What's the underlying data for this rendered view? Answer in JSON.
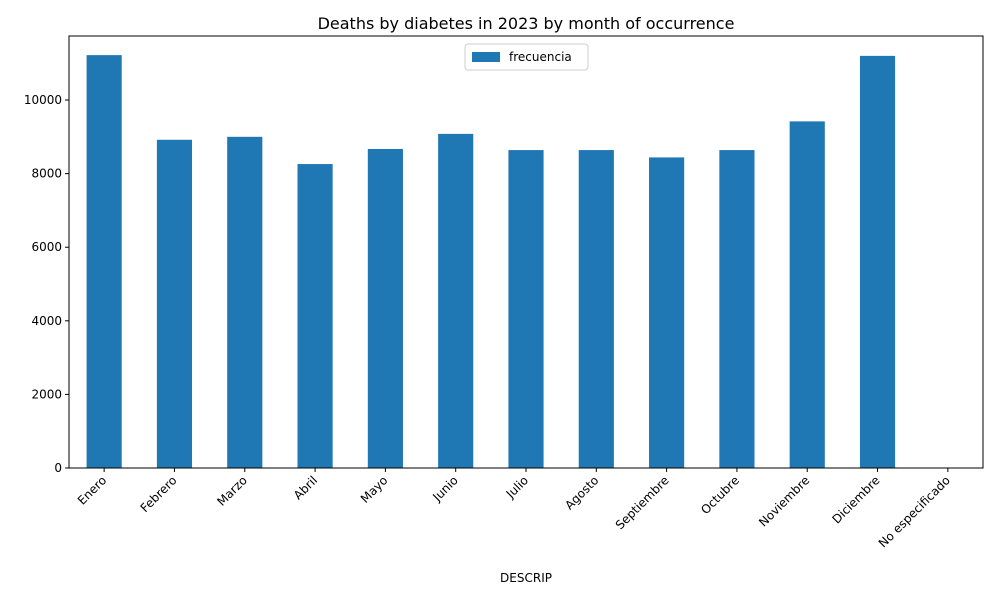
{
  "chart_data": {
    "type": "bar",
    "title": "Deaths by diabetes in 2023 by month of occurrence",
    "xlabel": "DESCRIP",
    "ylabel": "",
    "categories": [
      "Enero",
      "Febrero",
      "Marzo",
      "Abril",
      "Mayo",
      "Junio",
      "Julio",
      "Agosto",
      "Septiembre",
      "Octubre",
      "Noviembre",
      "Diciembre",
      "No especificado"
    ],
    "series": [
      {
        "name": "frecuencia",
        "color": "#1f77b4",
        "values": [
          11220,
          8920,
          9000,
          8260,
          8670,
          9080,
          8640,
          8640,
          8440,
          8640,
          9420,
          11200,
          5
        ]
      }
    ],
    "ylim": [
      0,
      11740
    ],
    "yticks": [
      0,
      2000,
      4000,
      6000,
      8000,
      10000
    ],
    "grid": false,
    "legend": "upper center"
  }
}
